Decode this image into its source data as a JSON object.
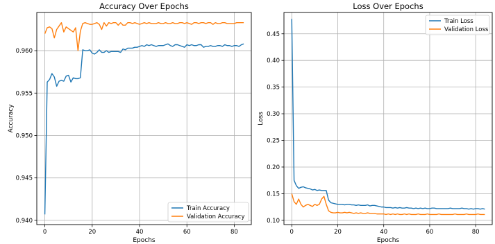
{
  "chart_data": [
    {
      "type": "line",
      "title": "Accuracy Over Epochs",
      "xlabel": "Epochs",
      "ylabel": "Accuracy",
      "xlim": [
        -3.4,
        87.2
      ],
      "ylim": [
        0.9395,
        0.9645
      ],
      "xticks": [
        0,
        20,
        40,
        60,
        80
      ],
      "yticks": [
        0.94,
        0.945,
        0.95,
        0.955,
        0.96
      ],
      "ytick_labels": [
        "0.940",
        "0.945",
        "0.950",
        "0.955",
        "0.960"
      ],
      "grid": true,
      "legend_position": "lower-right",
      "series": [
        {
          "name": "Train Accuracy",
          "color": "#1f77b4",
          "values": [
            0.9407,
            0.9563,
            0.9566,
            0.9573,
            0.9569,
            0.9558,
            0.9564,
            0.9565,
            0.9564,
            0.957,
            0.9571,
            0.9563,
            0.9568,
            0.9567,
            0.9567,
            0.9568,
            0.9601,
            0.96,
            0.96,
            0.9601,
            0.9597,
            0.9596,
            0.9598,
            0.9601,
            0.9598,
            0.9598,
            0.96,
            0.9598,
            0.9599,
            0.9599,
            0.9599,
            0.9599,
            0.9598,
            0.9602,
            0.9601,
            0.9603,
            0.9603,
            0.9603,
            0.9604,
            0.9604,
            0.9605,
            0.9606,
            0.9605,
            0.9607,
            0.9606,
            0.9607,
            0.9606,
            0.9605,
            0.9606,
            0.9606,
            0.9606,
            0.9607,
            0.9608,
            0.9606,
            0.9605,
            0.9607,
            0.9607,
            0.9606,
            0.9605,
            0.9604,
            0.9607,
            0.9606,
            0.9607,
            0.9606,
            0.9606,
            0.9607,
            0.9607,
            0.9604,
            0.9605,
            0.9605,
            0.9606,
            0.9605,
            0.9605,
            0.9606,
            0.9606,
            0.9605,
            0.9607,
            0.9606,
            0.9606,
            0.9605,
            0.9606,
            0.9606,
            0.9605,
            0.9607,
            0.9608
          ]
        },
        {
          "name": "Validation Accuracy",
          "color": "#ff7f0e",
          "values": [
            0.962,
            0.9627,
            0.9628,
            0.9626,
            0.9615,
            0.9625,
            0.9629,
            0.9633,
            0.9622,
            0.9628,
            0.9626,
            0.9624,
            0.9622,
            0.9627,
            0.96,
            0.9623,
            0.9632,
            0.9633,
            0.9632,
            0.9631,
            0.9631,
            0.9632,
            0.9633,
            0.9631,
            0.9625,
            0.9633,
            0.9629,
            0.9633,
            0.9632,
            0.9633,
            0.9633,
            0.963,
            0.9633,
            0.963,
            0.963,
            0.9633,
            0.9633,
            0.9632,
            0.9633,
            0.9632,
            0.9631,
            0.9632,
            0.9633,
            0.9632,
            0.9633,
            0.9632,
            0.9632,
            0.9632,
            0.9633,
            0.9632,
            0.9632,
            0.9633,
            0.9632,
            0.9632,
            0.9633,
            0.9632,
            0.9632,
            0.9633,
            0.9633,
            0.9632,
            0.9633,
            0.9632,
            0.9631,
            0.9633,
            0.9633,
            0.9632,
            0.9633,
            0.9633,
            0.9632,
            0.9633,
            0.9633,
            0.9631,
            0.9633,
            0.9632,
            0.9632,
            0.9633,
            0.9633,
            0.9632,
            0.9632,
            0.9632,
            0.9632,
            0.9633,
            0.9633,
            0.9633,
            0.9633
          ]
        }
      ]
    },
    {
      "type": "line",
      "title": "Loss Over Epochs",
      "xlabel": "Epochs",
      "ylabel": "Loss",
      "xlim": [
        -3.4,
        87.2
      ],
      "ylim": [
        0.092,
        0.49
      ],
      "xticks": [
        0,
        20,
        40,
        60,
        80
      ],
      "yticks": [
        0.1,
        0.15,
        0.2,
        0.25,
        0.3,
        0.35,
        0.4,
        0.45
      ],
      "ytick_labels": [
        "0.10",
        "0.15",
        "0.20",
        "0.25",
        "0.30",
        "0.35",
        "0.40",
        "0.45"
      ],
      "grid": true,
      "legend_position": "top-right",
      "series": [
        {
          "name": "Train Loss",
          "color": "#1f77b4",
          "values": [
            0.478,
            0.175,
            0.165,
            0.16,
            0.162,
            0.163,
            0.161,
            0.16,
            0.159,
            0.157,
            0.158,
            0.156,
            0.157,
            0.156,
            0.156,
            0.156,
            0.138,
            0.133,
            0.132,
            0.131,
            0.13,
            0.13,
            0.13,
            0.129,
            0.13,
            0.13,
            0.129,
            0.129,
            0.128,
            0.129,
            0.128,
            0.128,
            0.128,
            0.129,
            0.127,
            0.128,
            0.128,
            0.127,
            0.126,
            0.125,
            0.125,
            0.124,
            0.124,
            0.124,
            0.123,
            0.124,
            0.123,
            0.124,
            0.123,
            0.123,
            0.124,
            0.123,
            0.123,
            0.122,
            0.123,
            0.122,
            0.123,
            0.122,
            0.123,
            0.122,
            0.122,
            0.123,
            0.123,
            0.122,
            0.122,
            0.122,
            0.122,
            0.122,
            0.122,
            0.123,
            0.122,
            0.122,
            0.122,
            0.122,
            0.123,
            0.122,
            0.122,
            0.121,
            0.122,
            0.121,
            0.122,
            0.122,
            0.121,
            0.122,
            0.121
          ]
        },
        {
          "name": "Validation Loss",
          "color": "#ff7f0e",
          "values": [
            0.15,
            0.135,
            0.13,
            0.14,
            0.13,
            0.125,
            0.128,
            0.13,
            0.128,
            0.126,
            0.13,
            0.128,
            0.13,
            0.14,
            0.145,
            0.13,
            0.118,
            0.115,
            0.114,
            0.114,
            0.115,
            0.114,
            0.114,
            0.115,
            0.114,
            0.115,
            0.114,
            0.113,
            0.114,
            0.113,
            0.114,
            0.113,
            0.113,
            0.114,
            0.113,
            0.113,
            0.113,
            0.112,
            0.112,
            0.112,
            0.112,
            0.111,
            0.112,
            0.111,
            0.112,
            0.111,
            0.112,
            0.111,
            0.111,
            0.112,
            0.111,
            0.112,
            0.111,
            0.111,
            0.111,
            0.112,
            0.111,
            0.111,
            0.111,
            0.112,
            0.111,
            0.111,
            0.111,
            0.111,
            0.112,
            0.111,
            0.111,
            0.111,
            0.111,
            0.111,
            0.111,
            0.112,
            0.111,
            0.111,
            0.111,
            0.111,
            0.112,
            0.111,
            0.111,
            0.111,
            0.111,
            0.112,
            0.111,
            0.111,
            0.111
          ]
        }
      ]
    }
  ]
}
